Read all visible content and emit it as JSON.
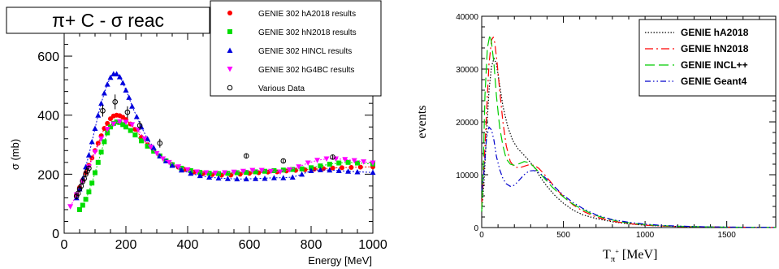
{
  "chart_data": [
    {
      "type": "scatter",
      "title": "π+ C - σ reac",
      "xlabel": "Energy [MeV]",
      "ylabel": "σ (mb)",
      "xlim": [
        0,
        1000
      ],
      "ylim": [
        0,
        680
      ],
      "xticks": [
        "0",
        "200",
        "400",
        "600",
        "800",
        "1000"
      ],
      "yticks": [
        "0",
        "200",
        "400",
        "600"
      ],
      "legend_position": "top-right",
      "series": [
        {
          "name": "GENIE 302 hA2018 results",
          "color": "#ff0000",
          "marker": "circle",
          "x": [
            40,
            50,
            60,
            70,
            80,
            90,
            100,
            110,
            120,
            130,
            140,
            150,
            160,
            170,
            180,
            190,
            200,
            215,
            230,
            250,
            270,
            290,
            310,
            330,
            350,
            370,
            390,
            420,
            450,
            480,
            510,
            540,
            570,
            600,
            630,
            660,
            690,
            720,
            750,
            780,
            810,
            840,
            870,
            900,
            930,
            960,
            1000
          ],
          "y": [
            130,
            155,
            180,
            205,
            230,
            255,
            280,
            305,
            330,
            355,
            372,
            388,
            397,
            400,
            398,
            393,
            385,
            370,
            352,
            325,
            300,
            280,
            262,
            245,
            233,
            224,
            216,
            207,
            202,
            199,
            197,
            197,
            200,
            203,
            205,
            207,
            208,
            211,
            213,
            215,
            217,
            219,
            221,
            222,
            223,
            224,
            225
          ]
        },
        {
          "name": "GENIE 302 hN2018 results",
          "color": "#00dd00",
          "marker": "square",
          "x": [
            50,
            60,
            70,
            80,
            90,
            100,
            110,
            120,
            130,
            140,
            150,
            160,
            170,
            180,
            190,
            200,
            215,
            230,
            250,
            270,
            290,
            310,
            330,
            350,
            380,
            410,
            440,
            470,
            500,
            530,
            560,
            590,
            620,
            650,
            680,
            710,
            740,
            770,
            800,
            830,
            860,
            890,
            920,
            950,
            1000
          ],
          "y": [
            80,
            95,
            115,
            140,
            170,
            205,
            240,
            275,
            310,
            340,
            360,
            372,
            377,
            375,
            368,
            360,
            348,
            333,
            313,
            295,
            278,
            262,
            245,
            232,
            220,
            212,
            206,
            203,
            202,
            203,
            205,
            206,
            208,
            210,
            212,
            214,
            216,
            218,
            222,
            228,
            234,
            238,
            240,
            238,
            235
          ]
        },
        {
          "name": "GENIE 302 HINCL results",
          "color": "#0000dd",
          "marker": "triangle",
          "x": [
            40,
            50,
            60,
            70,
            80,
            90,
            100,
            110,
            120,
            130,
            140,
            150,
            160,
            170,
            180,
            190,
            200,
            210,
            220,
            235,
            250,
            270,
            290,
            310,
            330,
            350,
            380,
            410,
            440,
            470,
            500,
            530,
            560,
            590,
            620,
            650,
            680,
            710,
            740,
            770,
            800,
            830,
            860,
            890,
            920,
            950,
            1000
          ],
          "y": [
            120,
            150,
            185,
            225,
            265,
            310,
            355,
            400,
            440,
            475,
            505,
            528,
            540,
            540,
            530,
            510,
            485,
            460,
            430,
            395,
            360,
            320,
            290,
            262,
            245,
            230,
            214,
            203,
            195,
            190,
            187,
            185,
            184,
            184,
            185,
            186,
            188,
            188,
            190,
            200,
            212,
            215,
            214,
            212,
            210,
            208,
            206
          ]
        },
        {
          "name": "GENIE 302 hG4BC results",
          "color": "#ff00ff",
          "marker": "triangle-down",
          "x": [
            20,
            40,
            60,
            80,
            100,
            120,
            140,
            160,
            180,
            200,
            220,
            240,
            260,
            280,
            300,
            320,
            340,
            370,
            400,
            430,
            460,
            490,
            520,
            550,
            580,
            610,
            640,
            670,
            700,
            730,
            760,
            790,
            820,
            850,
            880,
            910,
            940,
            970,
            1000
          ],
          "y": [
            90,
            130,
            175,
            225,
            275,
            320,
            352,
            370,
            378,
            376,
            368,
            350,
            320,
            292,
            270,
            252,
            240,
            225,
            215,
            208,
            205,
            204,
            205,
            207,
            210,
            213,
            213,
            210,
            208,
            215,
            225,
            238,
            247,
            252,
            252,
            250,
            246,
            242,
            238
          ]
        },
        {
          "name": "Various Data",
          "color": "#000000",
          "marker": "open-circle",
          "x": [
            40,
            45,
            50,
            55,
            60,
            65,
            70,
            75,
            80,
            125,
            165,
            205,
            245,
            310,
            590,
            710,
            870
          ],
          "y": [
            125,
            135,
            150,
            160,
            175,
            185,
            200,
            210,
            220,
            415,
            445,
            410,
            365,
            305,
            262,
            245,
            258
          ],
          "err": [
            10,
            10,
            10,
            10,
            10,
            10,
            10,
            10,
            10,
            20,
            25,
            20,
            15,
            15,
            8,
            8,
            8
          ]
        }
      ]
    },
    {
      "type": "line",
      "title": "",
      "xlabel": "T_π+ [MeV]",
      "xlabel_main": "T",
      "xlabel_sub": "π",
      "xlabel_sup": "+",
      "xlabel_unit": " [MeV]",
      "ylabel": "events",
      "xlim": [
        0,
        1800
      ],
      "ylim": [
        0,
        40000
      ],
      "xticks": [
        "0",
        "500",
        "1000",
        "1500"
      ],
      "yticks": [
        "0",
        "10000",
        "20000",
        "30000",
        "40000"
      ],
      "legend_position": "top-right",
      "series": [
        {
          "name": "GENIE hA2018",
          "color": "#000000",
          "dash": "dotted",
          "x": [
            0,
            15,
            30,
            45,
            60,
            75,
            90,
            110,
            130,
            160,
            190,
            220,
            250,
            280,
            320,
            360,
            400,
            450,
            500,
            560,
            620,
            700,
            800,
            900,
            1000,
            1100,
            1200,
            1350,
            1500,
            1650,
            1800
          ],
          "y": [
            3000,
            9000,
            18000,
            26000,
            30500,
            32000,
            31000,
            27000,
            23000,
            19000,
            16500,
            15000,
            14000,
            13000,
            11500,
            9500,
            7800,
            6000,
            4600,
            3300,
            2400,
            1700,
            1100,
            700,
            450,
            300,
            200,
            120,
            70,
            40,
            20
          ]
        },
        {
          "name": "GENIE hN2018",
          "color": "#ff0000",
          "dash": "dash-dot",
          "x": [
            0,
            15,
            30,
            45,
            60,
            70,
            80,
            95,
            110,
            130,
            150,
            175,
            200,
            230,
            260,
            290,
            320,
            350,
            380,
            420,
            460,
            500,
            560,
            620,
            700,
            800,
            900,
            1000,
            1100,
            1200,
            1350,
            1500,
            1650,
            1800
          ],
          "y": [
            4000,
            12000,
            22000,
            31000,
            35500,
            36000,
            35000,
            31000,
            26000,
            20000,
            15500,
            12500,
            11500,
            11300,
            11600,
            11900,
            11800,
            11200,
            10200,
            8700,
            7200,
            5900,
            4300,
            3100,
            2000,
            1200,
            750,
            450,
            300,
            200,
            120,
            70,
            40,
            20
          ]
        },
        {
          "name": "GENIE INCL++",
          "color": "#00cc00",
          "dash": "long-dash",
          "x": [
            0,
            10,
            20,
            35,
            50,
            60,
            75,
            90,
            110,
            130,
            150,
            175,
            200,
            230,
            260,
            290,
            320,
            350,
            390,
            430,
            480,
            540,
            600,
            680,
            760,
            850,
            950,
            1050,
            1150,
            1300,
            1450,
            1600,
            1800
          ],
          "y": [
            3000,
            12000,
            25000,
            34000,
            36500,
            35000,
            31000,
            25000,
            19000,
            15500,
            13000,
            12000,
            11800,
            12100,
            12500,
            12300,
            11500,
            10500,
            9100,
            7700,
            6300,
            4800,
            3700,
            2500,
            1700,
            1100,
            700,
            450,
            300,
            170,
            100,
            55,
            25
          ]
        },
        {
          "name": "GENIE Geant4",
          "color": "#0000cc",
          "dash": "dash-dot-dot",
          "x": [
            0,
            10,
            20,
            30,
            45,
            60,
            75,
            90,
            110,
            130,
            150,
            175,
            200,
            230,
            260,
            290,
            320,
            350,
            380,
            420,
            460,
            500,
            560,
            620,
            700,
            800,
            900,
            1000,
            1100,
            1200,
            1350,
            1500,
            1650,
            1800
          ],
          "y": [
            7000,
            9000,
            13000,
            17000,
            19000,
            18500,
            16500,
            13500,
            11000,
            9300,
            8300,
            7800,
            8000,
            9000,
            10000,
            10700,
            10800,
            10400,
            9700,
            8500,
            7300,
            6100,
            4700,
            3600,
            2400,
            1500,
            1000,
            650,
            420,
            270,
            150,
            90,
            50,
            25
          ]
        }
      ]
    }
  ]
}
